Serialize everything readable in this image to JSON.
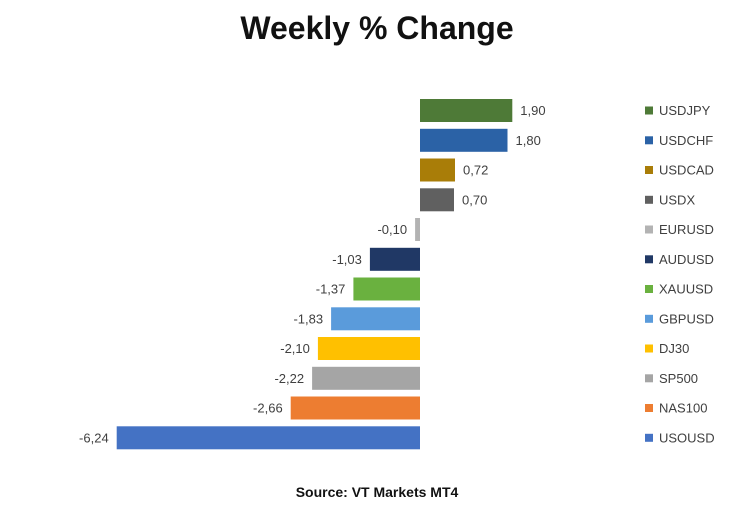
{
  "chart_data": {
    "type": "bar",
    "orientation": "horizontal",
    "title": "Weekly % Change",
    "source": "Source: VT Markets MT4",
    "decimal_separator": ",",
    "xlabel": "",
    "ylabel": "",
    "xlim": [
      -6.24,
      1.9
    ],
    "grid": false,
    "legend_position": "right",
    "categories": [
      "USDJPY",
      "USDCHF",
      "USDCAD",
      "USDX",
      "EURUSD",
      "AUDUSD",
      "XAUUSD",
      "GBPUSD",
      "DJ30",
      "SP500",
      "NAS100",
      "USOUSD"
    ],
    "values": [
      1.9,
      1.8,
      0.72,
      0.7,
      -0.1,
      -1.03,
      -1.37,
      -1.83,
      -2.1,
      -2.22,
      -2.66,
      -6.24
    ],
    "colors": [
      "#4e7a37",
      "#2b62a6",
      "#a97d08",
      "#606060",
      "#b3b3b3",
      "#203865",
      "#6ab13f",
      "#5a9bdb",
      "#ffc000",
      "#a5a5a5",
      "#ed7d31",
      "#4472c4"
    ]
  }
}
